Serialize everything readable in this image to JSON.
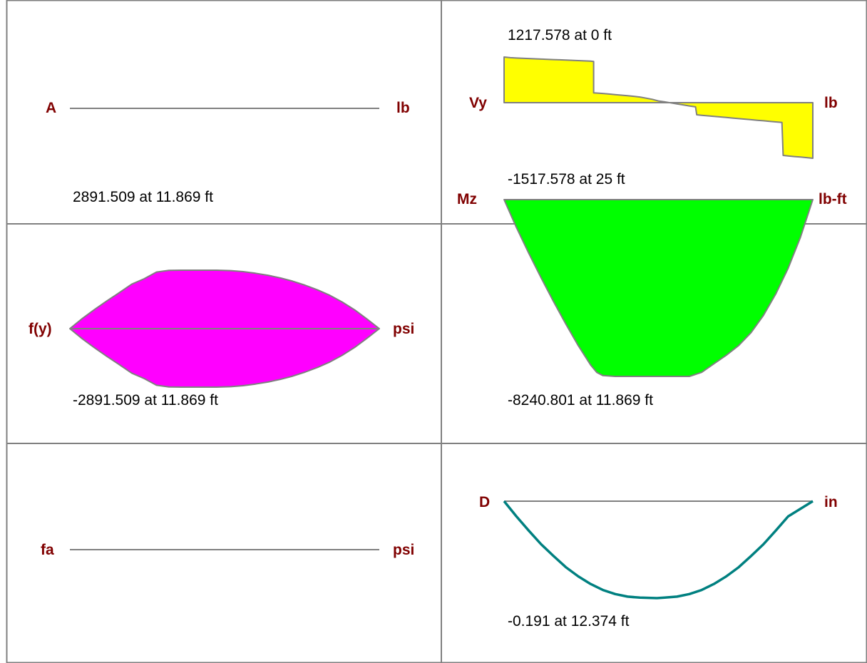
{
  "panels": [
    {
      "id": "axial",
      "left_label": "A",
      "unit_label": "lb",
      "max_label": "",
      "min_label": "",
      "fill": "none",
      "points": [
        [
          0,
          0
        ],
        [
          25,
          0
        ]
      ],
      "value_range": [
        -1,
        1
      ]
    },
    {
      "id": "shear",
      "left_label": "Vy",
      "unit_label": "lb",
      "max_label": "1217.578 at 0 ft",
      "min_label": "-1517.578 at 25 ft",
      "fill": "#ffff00",
      "value_range": [
        -1517.578,
        1217.578
      ],
      "points": [
        [
          0,
          1217.578
        ],
        [
          0.5,
          1200
        ],
        [
          1,
          1190
        ],
        [
          1.5,
          1184
        ],
        [
          2,
          1178
        ],
        [
          2.5,
          1170
        ],
        [
          3,
          1163
        ],
        [
          3.5,
          1157
        ],
        [
          4,
          1150
        ],
        [
          4.5,
          1143
        ],
        [
          5,
          1136
        ],
        [
          5.5,
          1130
        ],
        [
          6,
          1122
        ],
        [
          6.5,
          1115
        ],
        [
          7,
          1108
        ],
        [
          7.25,
          1100
        ],
        [
          7.25,
          260
        ],
        [
          7.6,
          255
        ],
        [
          8,
          245
        ],
        [
          8.5,
          230
        ],
        [
          9,
          215
        ],
        [
          9.5,
          200
        ],
        [
          10,
          185
        ],
        [
          10.5,
          170
        ],
        [
          11,
          150
        ],
        [
          11.5,
          120
        ],
        [
          12,
          90
        ],
        [
          12.5,
          45
        ],
        [
          13,
          20
        ],
        [
          13.5,
          -5
        ],
        [
          14,
          -35
        ],
        [
          14.5,
          -60
        ],
        [
          15,
          -90
        ],
        [
          15.5,
          -115
        ],
        [
          15.6,
          -330
        ],
        [
          16,
          -345
        ],
        [
          16.5,
          -360
        ],
        [
          17,
          -375
        ],
        [
          17.5,
          -390
        ],
        [
          18,
          -405
        ],
        [
          18.5,
          -420
        ],
        [
          19,
          -435
        ],
        [
          19.5,
          -450
        ],
        [
          20,
          -465
        ],
        [
          20.5,
          -480
        ],
        [
          21,
          -495
        ],
        [
          21.5,
          -510
        ],
        [
          22,
          -525
        ],
        [
          22.5,
          -540
        ],
        [
          22.6,
          -1440
        ],
        [
          23,
          -1455
        ],
        [
          23.5,
          -1470
        ],
        [
          24,
          -1485
        ],
        [
          24.5,
          -1500
        ],
        [
          25,
          -1517.578
        ]
      ]
    },
    {
      "id": "bending-stress",
      "left_label": "f(y)",
      "unit_label": "psi",
      "max_label": "2891.509 at 11.869 ft",
      "min_label": "-2891.509 at 11.869 ft",
      "fill": "#ff00ff",
      "value_range": [
        -2891.509,
        2891.509
      ],
      "points": [
        [
          0,
          0
        ],
        [
          1,
          500
        ],
        [
          2,
          950
        ],
        [
          3,
          1380
        ],
        [
          4,
          1780
        ],
        [
          5,
          2200
        ],
        [
          6,
          2470
        ],
        [
          7,
          2800
        ],
        [
          8,
          2880
        ],
        [
          9,
          2891.509
        ],
        [
          10,
          2891.509
        ],
        [
          11,
          2891.509
        ],
        [
          11.869,
          2891.509
        ],
        [
          13,
          2870
        ],
        [
          14,
          2820
        ],
        [
          15,
          2740
        ],
        [
          16,
          2640
        ],
        [
          17,
          2510
        ],
        [
          18,
          2350
        ],
        [
          19,
          2150
        ],
        [
          20,
          1920
        ],
        [
          21,
          1650
        ],
        [
          22,
          1320
        ],
        [
          23,
          930
        ],
        [
          24,
          480
        ],
        [
          25,
          0
        ]
      ],
      "mirror": true
    },
    {
      "id": "moment",
      "left_label": "Mz",
      "unit_label": "lb-ft",
      "max_label": "",
      "min_label": "-8240.801 at 11.869 ft",
      "fill": "#00ff00",
      "value_range": [
        -8240.801,
        0
      ],
      "points": [
        [
          0,
          0
        ],
        [
          1,
          -1300
        ],
        [
          2,
          -2500
        ],
        [
          3,
          -3650
        ],
        [
          4,
          -4750
        ],
        [
          5,
          -5800
        ],
        [
          6,
          -6800
        ],
        [
          7,
          -7700
        ],
        [
          7.5,
          -8050
        ],
        [
          8,
          -8200
        ],
        [
          9,
          -8240.801
        ],
        [
          11.869,
          -8240.801
        ],
        [
          14,
          -8240.801
        ],
        [
          15,
          -8240.801
        ],
        [
          16,
          -8050
        ],
        [
          17,
          -7650
        ],
        [
          18,
          -7250
        ],
        [
          19,
          -6800
        ],
        [
          20,
          -6200
        ],
        [
          21,
          -5400
        ],
        [
          22,
          -4400
        ],
        [
          23,
          -3200
        ],
        [
          24,
          -1750
        ],
        [
          25,
          0
        ]
      ]
    },
    {
      "id": "axial-stress",
      "left_label": "fa",
      "unit_label": "psi",
      "max_label": "",
      "min_label": "",
      "fill": "none",
      "points": [
        [
          0,
          0
        ],
        [
          25,
          0
        ]
      ],
      "value_range": [
        -1,
        1
      ]
    },
    {
      "id": "deflection",
      "left_label": "D",
      "unit_label": "in",
      "max_label": "",
      "min_label": "-0.191 at 12.374 ft",
      "fill": "none",
      "stroke": "#008080",
      "value_range": [
        -0.191,
        0
      ],
      "points": [
        [
          0,
          0
        ],
        [
          1,
          -0.03
        ],
        [
          2,
          -0.058
        ],
        [
          3,
          -0.085
        ],
        [
          4,
          -0.108
        ],
        [
          5,
          -0.13
        ],
        [
          6,
          -0.148
        ],
        [
          7,
          -0.163
        ],
        [
          8,
          -0.175
        ],
        [
          9,
          -0.183
        ],
        [
          10,
          -0.188
        ],
        [
          11,
          -0.19
        ],
        [
          12.374,
          -0.191
        ],
        [
          13,
          -0.19
        ],
        [
          14,
          -0.188
        ],
        [
          15,
          -0.183
        ],
        [
          16,
          -0.175
        ],
        [
          17,
          -0.163
        ],
        [
          18,
          -0.148
        ],
        [
          19,
          -0.13
        ],
        [
          20,
          -0.108
        ],
        [
          21,
          -0.085
        ],
        [
          22,
          -0.058
        ],
        [
          23,
          -0.03
        ],
        [
          25,
          0
        ]
      ]
    }
  ],
  "colors": {
    "grid": "#808080",
    "baseline": "#808080",
    "axis_label": "#800000",
    "value_label": "#000000"
  }
}
